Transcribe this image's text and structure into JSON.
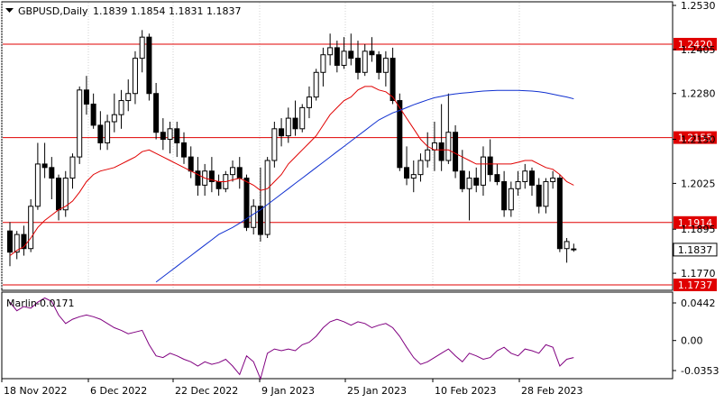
{
  "header": {
    "symbol": "GBPUSD,Daily",
    "ohlc": "1.1839 1.1854 1.1831 1.1837"
  },
  "indicator": {
    "name": "Marlin",
    "value": "-0.0171",
    "ticks": [
      "0.0442",
      "0.00",
      "-0.0353"
    ]
  },
  "colors": {
    "bull_body": "#ffffff",
    "bear_body": "#000000",
    "ma_fast": "#e00000",
    "ma_slow": "#1030d0",
    "levels": "#e00000",
    "oscillator": "#800080",
    "grid": "#d0d0d0"
  },
  "chart_data": {
    "type": "candlestick",
    "title": "GBPUSD,Daily",
    "price_ylim": [
      1.1737,
      1.253
    ],
    "price_ticks": [
      "1.2530",
      "1.2405",
      "1.2280",
      "1.2150",
      "1.2025",
      "1.1895",
      "1.1770"
    ],
    "current_price": "1.1837",
    "level_labels": [
      "1.2420",
      "1.2155",
      "1.1914",
      "1.1737"
    ],
    "levels": [
      1.242,
      1.2155,
      1.1914,
      1.1737
    ],
    "x_labels": [
      "18 Nov 2022",
      "6 Dec 2022",
      "22 Dec 2022",
      "9 Jan 2023",
      "25 Jan 2023",
      "10 Feb 2023",
      "28 Feb 2023"
    ],
    "candles": [
      [
        1.189,
        1.1915,
        1.179,
        1.183
      ],
      [
        1.183,
        1.189,
        1.181,
        1.188
      ],
      [
        1.188,
        1.1905,
        1.182,
        1.184
      ],
      [
        1.184,
        1.198,
        1.183,
        1.196
      ],
      [
        1.196,
        1.214,
        1.195,
        1.208
      ],
      [
        1.208,
        1.214,
        1.204,
        1.207
      ],
      [
        1.207,
        1.21,
        1.198,
        1.204
      ],
      [
        1.204,
        1.205,
        1.192,
        1.195
      ],
      [
        1.195,
        1.206,
        1.193,
        1.204
      ],
      [
        1.204,
        1.211,
        1.201,
        1.21
      ],
      [
        1.21,
        1.23,
        1.208,
        1.229
      ],
      [
        1.229,
        1.233,
        1.222,
        1.225
      ],
      [
        1.225,
        1.228,
        1.218,
        1.219
      ],
      [
        1.219,
        1.223,
        1.212,
        1.214
      ],
      [
        1.214,
        1.222,
        1.212,
        1.22
      ],
      [
        1.22,
        1.228,
        1.217,
        1.222
      ],
      [
        1.222,
        1.229,
        1.218,
        1.226
      ],
      [
        1.226,
        1.232,
        1.223,
        1.228
      ],
      [
        1.228,
        1.24,
        1.225,
        1.238
      ],
      [
        1.238,
        1.246,
        1.234,
        1.244
      ],
      [
        1.244,
        1.245,
        1.226,
        1.228
      ],
      [
        1.228,
        1.231,
        1.215,
        1.217
      ],
      [
        1.217,
        1.221,
        1.212,
        1.215
      ],
      [
        1.215,
        1.22,
        1.211,
        1.218
      ],
      [
        1.218,
        1.22,
        1.21,
        1.214
      ],
      [
        1.214,
        1.217,
        1.208,
        1.21
      ],
      [
        1.21,
        1.213,
        1.204,
        1.206
      ],
      [
        1.206,
        1.21,
        1.199,
        1.202
      ],
      [
        1.202,
        1.208,
        1.199,
        1.206
      ],
      [
        1.206,
        1.21,
        1.2,
        1.203
      ],
      [
        1.203,
        1.205,
        1.199,
        1.201
      ],
      [
        1.201,
        1.206,
        1.2,
        1.205
      ],
      [
        1.205,
        1.209,
        1.203,
        1.207
      ],
      [
        1.207,
        1.21,
        1.201,
        1.204
      ],
      [
        1.204,
        1.205,
        1.189,
        1.19
      ],
      [
        1.19,
        1.198,
        1.188,
        1.196
      ],
      [
        1.196,
        1.207,
        1.186,
        1.188
      ],
      [
        1.188,
        1.21,
        1.187,
        1.209
      ],
      [
        1.209,
        1.22,
        1.207,
        1.218
      ],
      [
        1.218,
        1.221,
        1.213,
        1.216
      ],
      [
        1.216,
        1.224,
        1.214,
        1.221
      ],
      [
        1.221,
        1.226,
        1.216,
        1.218
      ],
      [
        1.218,
        1.225,
        1.217,
        1.224
      ],
      [
        1.224,
        1.23,
        1.221,
        1.227
      ],
      [
        1.227,
        1.235,
        1.226,
        1.234
      ],
      [
        1.234,
        1.241,
        1.23,
        1.239
      ],
      [
        1.239,
        1.245,
        1.236,
        1.241
      ],
      [
        1.241,
        1.243,
        1.234,
        1.236
      ],
      [
        1.236,
        1.244,
        1.235,
        1.24
      ],
      [
        1.24,
        1.245,
        1.236,
        1.238
      ],
      [
        1.238,
        1.243,
        1.232,
        1.234
      ],
      [
        1.234,
        1.242,
        1.233,
        1.24
      ],
      [
        1.24,
        1.244,
        1.237,
        1.239
      ],
      [
        1.239,
        1.24,
        1.232,
        1.234
      ],
      [
        1.234,
        1.24,
        1.23,
        1.238
      ],
      [
        1.238,
        1.241,
        1.225,
        1.226
      ],
      [
        1.226,
        1.228,
        1.206,
        1.207
      ],
      [
        1.207,
        1.213,
        1.202,
        1.204
      ],
      [
        1.204,
        1.209,
        1.2,
        1.205
      ],
      [
        1.205,
        1.211,
        1.203,
        1.209
      ],
      [
        1.209,
        1.217,
        1.207,
        1.212
      ],
      [
        1.212,
        1.22,
        1.206,
        1.214
      ],
      [
        1.214,
        1.225,
        1.206,
        1.209
      ],
      [
        1.209,
        1.228,
        1.208,
        1.217
      ],
      [
        1.217,
        1.219,
        1.204,
        1.206
      ],
      [
        1.206,
        1.212,
        1.2,
        1.201
      ],
      [
        1.201,
        1.206,
        1.192,
        1.204
      ],
      [
        1.204,
        1.207,
        1.2,
        1.202
      ],
      [
        1.202,
        1.213,
        1.199,
        1.21
      ],
      [
        1.21,
        1.215,
        1.203,
        1.205
      ],
      [
        1.205,
        1.208,
        1.202,
        1.203
      ],
      [
        1.203,
        1.206,
        1.193,
        1.195
      ],
      [
        1.195,
        1.203,
        1.193,
        1.201
      ],
      [
        1.201,
        1.206,
        1.199,
        1.203
      ],
      [
        1.203,
        1.208,
        1.201,
        1.206
      ],
      [
        1.206,
        1.207,
        1.199,
        1.202
      ],
      [
        1.202,
        1.204,
        1.194,
        1.196
      ],
      [
        1.196,
        1.204,
        1.194,
        1.203
      ],
      [
        1.203,
        1.206,
        1.201,
        1.204
      ],
      [
        1.204,
        1.205,
        1.183,
        1.184
      ],
      [
        1.184,
        1.187,
        1.18,
        1.186
      ],
      [
        1.1839,
        1.1854,
        1.1831,
        1.1837
      ]
    ],
    "ma_fast": [
      1.182,
      1.1835,
      1.1845,
      1.187,
      1.19,
      1.192,
      1.1935,
      1.195,
      1.196,
      1.1975,
      1.2,
      1.203,
      1.205,
      1.206,
      1.2065,
      1.207,
      1.208,
      1.209,
      1.21,
      1.2115,
      1.212,
      1.211,
      1.21,
      1.209,
      1.208,
      1.207,
      1.206,
      1.205,
      1.204,
      1.2035,
      1.203,
      1.203,
      1.2035,
      1.204,
      1.203,
      1.202,
      1.2005,
      1.201,
      1.203,
      1.205,
      1.208,
      1.21,
      1.212,
      1.214,
      1.216,
      1.219,
      1.222,
      1.224,
      1.226,
      1.227,
      1.229,
      1.23,
      1.23,
      1.229,
      1.2285,
      1.227,
      1.224,
      1.221,
      1.218,
      1.215,
      1.213,
      1.212,
      1.212,
      1.212,
      1.211,
      1.21,
      1.209,
      1.208,
      1.208,
      1.208,
      1.208,
      1.208,
      1.208,
      1.2085,
      1.209,
      1.209,
      1.208,
      1.207,
      1.2065,
      1.205,
      1.203,
      1.202
    ],
    "ma_slow": [
      null,
      null,
      null,
      null,
      null,
      null,
      null,
      null,
      null,
      null,
      null,
      null,
      null,
      null,
      null,
      null,
      null,
      null,
      null,
      null,
      null,
      1.1745,
      1.176,
      1.1775,
      1.179,
      1.1805,
      1.182,
      1.1835,
      1.185,
      1.1865,
      1.188,
      1.189,
      1.19,
      1.1912,
      1.1925,
      1.1938,
      1.195,
      1.1965,
      1.198,
      1.1995,
      1.201,
      1.2025,
      1.204,
      1.2055,
      1.207,
      1.2085,
      1.21,
      1.2115,
      1.213,
      1.2145,
      1.216,
      1.2175,
      1.219,
      1.2205,
      1.2215,
      1.2225,
      1.2232,
      1.224,
      1.2248,
      1.2255,
      1.2262,
      1.2268,
      1.2272,
      1.2276,
      1.2279,
      1.2281,
      1.2283,
      1.2285,
      1.2287,
      1.2288,
      1.2289,
      1.2289,
      1.2289,
      1.2289,
      1.2288,
      1.2287,
      1.2285,
      1.2282,
      1.2278,
      1.2274,
      1.227,
      1.2265
    ],
    "oscillator": [
      0.045,
      0.035,
      0.04,
      0.038,
      0.045,
      0.05,
      0.046,
      0.03,
      0.02,
      0.025,
      0.028,
      0.03,
      0.028,
      0.025,
      0.02,
      0.015,
      0.012,
      0.008,
      0.01,
      0.012,
      -0.005,
      -0.018,
      -0.02,
      -0.015,
      -0.018,
      -0.022,
      -0.025,
      -0.03,
      -0.025,
      -0.028,
      -0.026,
      -0.022,
      -0.03,
      -0.04,
      -0.018,
      -0.025,
      -0.045,
      -0.015,
      -0.01,
      -0.012,
      -0.01,
      -0.012,
      -0.005,
      -0.002,
      0.005,
      0.015,
      0.022,
      0.025,
      0.022,
      0.018,
      0.022,
      0.02,
      0.015,
      0.018,
      0.02,
      0.015,
      0.005,
      -0.008,
      -0.02,
      -0.028,
      -0.025,
      -0.02,
      -0.015,
      -0.01,
      -0.018,
      -0.025,
      -0.015,
      -0.018,
      -0.022,
      -0.02,
      -0.012,
      -0.008,
      -0.015,
      -0.018,
      -0.01,
      -0.012,
      -0.015,
      -0.005,
      -0.008,
      -0.03,
      -0.022,
      -0.02
    ]
  }
}
